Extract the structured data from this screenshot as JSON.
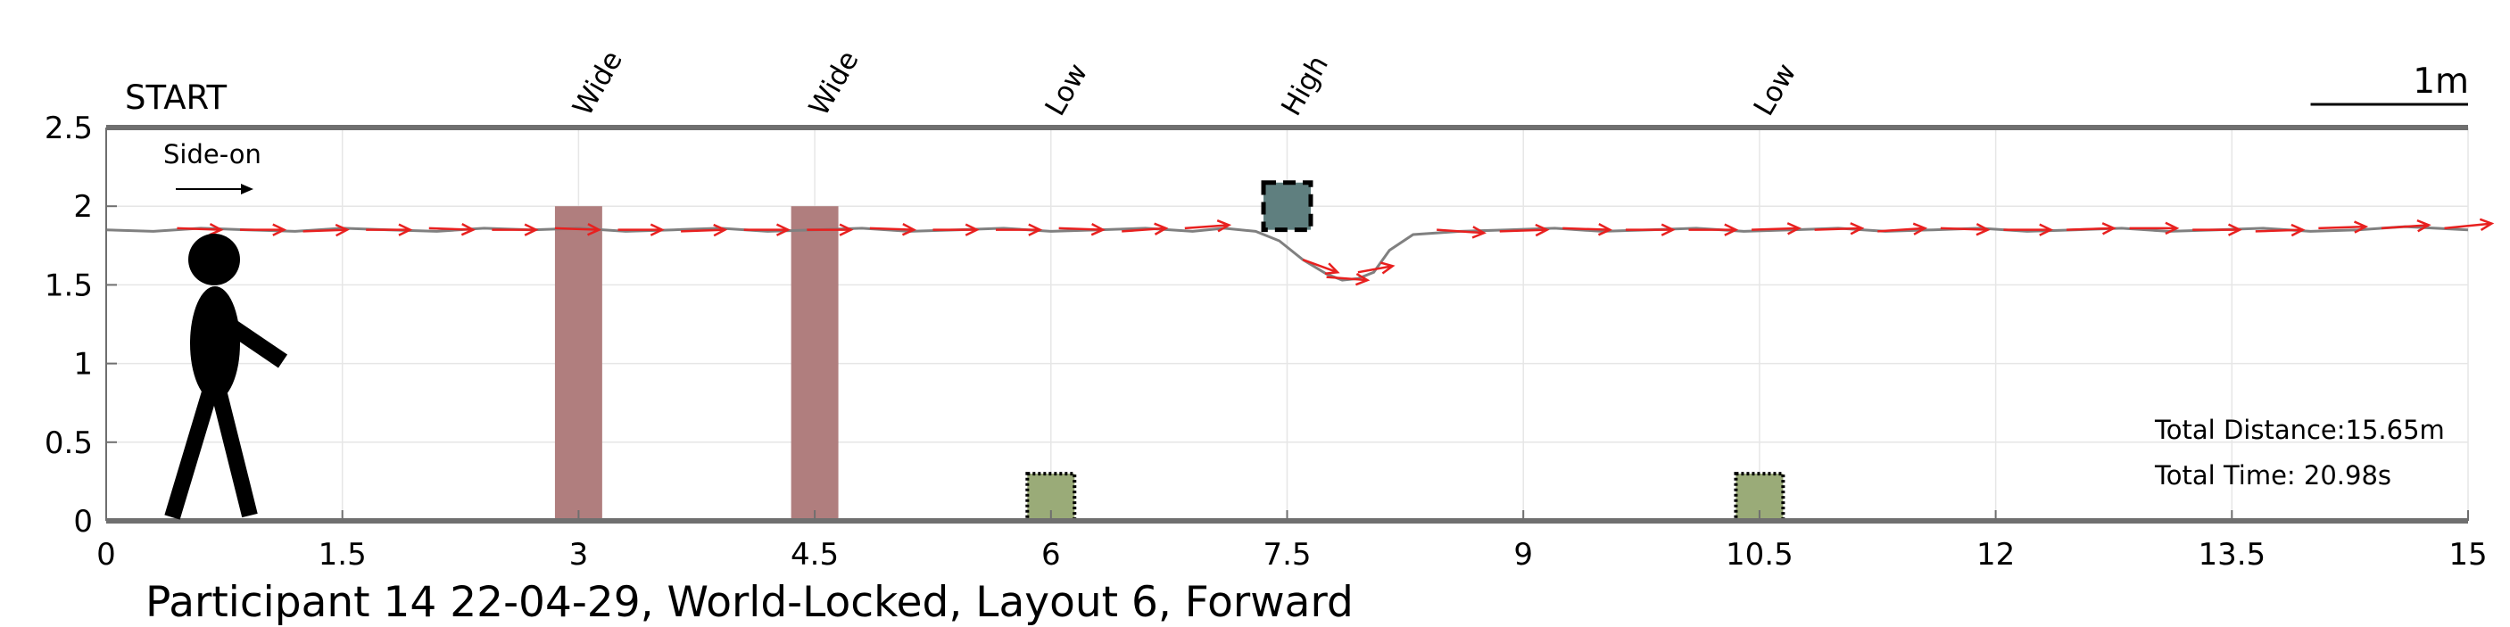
{
  "chart_data": {
    "type": "line",
    "title": "",
    "caption": "Participant 14 22-04-29, World-Locked, Layout 6, Forward",
    "xlim": [
      0,
      15
    ],
    "ylim": [
      0,
      2.5
    ],
    "x_ticks": [
      0,
      1.5,
      3,
      4.5,
      6,
      7.5,
      9,
      10.5,
      12,
      13.5,
      15
    ],
    "x_tick_labels": [
      "0",
      "1.5",
      "3",
      "4.5",
      "6",
      "7.5",
      "9",
      "10.5",
      "12",
      "13.5",
      "15"
    ],
    "y_ticks": [
      0,
      0.5,
      1,
      1.5,
      2,
      2.5
    ],
    "y_tick_labels": [
      "0",
      "0.5",
      "1",
      "1.5",
      "2",
      "2.5"
    ],
    "grid": true,
    "start_label": "START",
    "direction_label": "Side-on",
    "scale_bar_label": "1m",
    "scale_bar_length": 1,
    "total_distance_label": "Total Distance:15.65m",
    "total_time_label": "Total Time: 20.98s",
    "obstacles": [
      {
        "label": "Wide",
        "type": "wide",
        "x_min": 2.85,
        "x_max": 3.15,
        "y_min": 0,
        "y_max": 2.0,
        "color": "#b07e7e"
      },
      {
        "label": "Wide",
        "type": "wide",
        "x_min": 4.35,
        "x_max": 4.65,
        "y_min": 0,
        "y_max": 2.0,
        "color": "#b07e7e"
      },
      {
        "label": "Low",
        "type": "low",
        "x_min": 5.85,
        "x_max": 6.15,
        "y_min": 0,
        "y_max": 0.3,
        "color": "#9aab78"
      },
      {
        "label": "High",
        "type": "high",
        "x_min": 7.35,
        "x_max": 7.65,
        "y_min": 1.85,
        "y_max": 2.15,
        "color": "#5f7f7f"
      },
      {
        "label": "Low",
        "type": "low",
        "x_min": 10.35,
        "x_max": 10.65,
        "y_min": 0,
        "y_max": 0.3,
        "color": "#9aab78"
      }
    ],
    "series": [
      {
        "kind": "path",
        "color": "#808080",
        "x": [
          0,
          0.3,
          0.6,
          0.9,
          1.2,
          1.5,
          1.8,
          2.1,
          2.4,
          2.7,
          3.0,
          3.3,
          3.6,
          3.9,
          4.2,
          4.5,
          4.8,
          5.1,
          5.4,
          5.7,
          6.0,
          6.3,
          6.6,
          6.9,
          7.1,
          7.3,
          7.45,
          7.6,
          7.75,
          7.85,
          7.95,
          8.05,
          8.15,
          8.3,
          8.6,
          8.9,
          9.2,
          9.5,
          9.8,
          10.1,
          10.4,
          10.7,
          11.0,
          11.3,
          11.6,
          11.9,
          12.2,
          12.5,
          12.8,
          13.1,
          13.4,
          13.7,
          14.0,
          14.3,
          14.6,
          15.0
        ],
        "y": [
          1.85,
          1.84,
          1.86,
          1.85,
          1.84,
          1.86,
          1.85,
          1.84,
          1.86,
          1.85,
          1.86,
          1.84,
          1.85,
          1.86,
          1.84,
          1.85,
          1.86,
          1.84,
          1.85,
          1.86,
          1.84,
          1.85,
          1.86,
          1.84,
          1.86,
          1.84,
          1.78,
          1.66,
          1.57,
          1.53,
          1.54,
          1.58,
          1.72,
          1.82,
          1.84,
          1.85,
          1.86,
          1.84,
          1.85,
          1.86,
          1.84,
          1.85,
          1.86,
          1.84,
          1.85,
          1.86,
          1.84,
          1.85,
          1.86,
          1.84,
          1.85,
          1.86,
          1.84,
          1.85,
          1.87,
          1.85
        ]
      }
    ],
    "arrows": {
      "color": "#e8201f",
      "x": [
        0.45,
        0.85,
        1.25,
        1.65,
        2.05,
        2.45,
        2.85,
        3.25,
        3.65,
        4.05,
        4.45,
        4.85,
        5.25,
        5.65,
        6.05,
        6.45,
        6.85,
        7.6,
        7.75,
        7.95,
        8.45,
        8.85,
        9.25,
        9.65,
        10.05,
        10.45,
        10.85,
        11.25,
        11.65,
        12.05,
        12.45,
        12.85,
        13.25,
        13.65,
        14.05,
        14.45,
        14.85
      ],
      "y": [
        1.86,
        1.85,
        1.84,
        1.85,
        1.86,
        1.85,
        1.86,
        1.85,
        1.84,
        1.85,
        1.85,
        1.86,
        1.85,
        1.85,
        1.86,
        1.84,
        1.86,
        1.66,
        1.55,
        1.58,
        1.85,
        1.84,
        1.86,
        1.85,
        1.85,
        1.85,
        1.85,
        1.84,
        1.86,
        1.85,
        1.85,
        1.86,
        1.85,
        1.84,
        1.86,
        1.86,
        1.86
      ],
      "u": [
        0.28,
        0.28,
        0.28,
        0.28,
        0.28,
        0.28,
        0.28,
        0.28,
        0.28,
        0.28,
        0.28,
        0.28,
        0.28,
        0.28,
        0.28,
        0.28,
        0.28,
        0.22,
        0.26,
        0.22,
        0.3,
        0.3,
        0.3,
        0.3,
        0.3,
        0.3,
        0.3,
        0.3,
        0.3,
        0.3,
        0.3,
        0.3,
        0.3,
        0.3,
        0.3,
        0.3,
        0.3
      ],
      "v": [
        -0.01,
        0.0,
        0.01,
        0.0,
        -0.01,
        0.0,
        -0.01,
        0.0,
        0.01,
        0.0,
        0.0,
        -0.01,
        0.0,
        0.0,
        -0.01,
        0.02,
        0.02,
        -0.08,
        -0.02,
        0.04,
        -0.02,
        0.01,
        -0.01,
        0.0,
        0.0,
        0.01,
        0.01,
        0.02,
        -0.01,
        0.0,
        0.01,
        0.0,
        0.0,
        0.01,
        0.01,
        0.02,
        0.03
      ]
    }
  }
}
